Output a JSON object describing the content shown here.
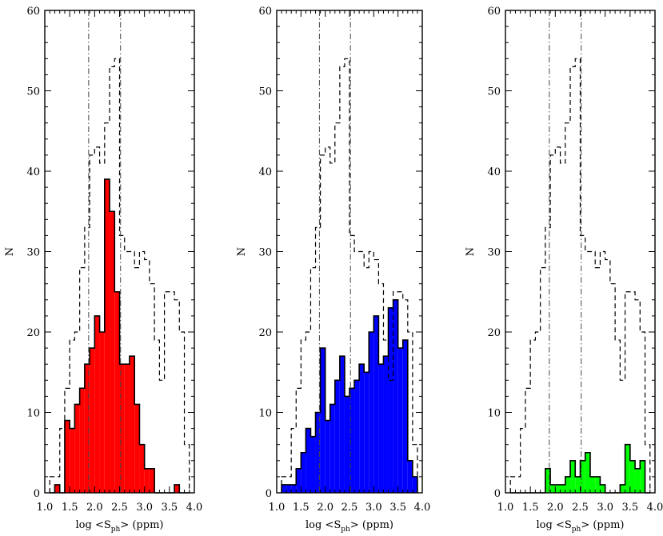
{
  "chart_data": [
    {
      "type": "histogram",
      "panel": "left",
      "xlabel": "log <S_ph> (ppm)",
      "ylabel": "N",
      "xlim": [
        1.0,
        4.0
      ],
      "ylim": [
        0,
        60
      ],
      "xticks": [
        "1.0",
        "1.5",
        "2.0",
        "2.5",
        "3.0",
        "3.5",
        "4.0"
      ],
      "yticks": [
        "0",
        "10",
        "20",
        "30",
        "40",
        "50",
        "60"
      ],
      "bin_width": 0.1,
      "vlines": [
        1.88,
        2.52
      ],
      "fill_color": "#ff0000",
      "series": [
        {
          "style": "filled",
          "x": [
            1.15,
            1.25,
            1.35,
            1.45,
            1.55,
            1.65,
            1.75,
            1.85,
            1.95,
            2.05,
            2.15,
            2.25,
            2.35,
            2.45,
            2.55,
            2.65,
            2.75,
            2.85,
            2.95,
            3.05,
            3.15,
            3.25,
            3.35,
            3.45,
            3.55,
            3.65,
            3.75,
            3.85
          ],
          "values": [
            0,
            1,
            0,
            9,
            8,
            11,
            13,
            16,
            18,
            22,
            20,
            39,
            35,
            25,
            16,
            16,
            17,
            11,
            6,
            3,
            3,
            0,
            0,
            0,
            0,
            1,
            0,
            0
          ]
        },
        {
          "style": "dashed",
          "x": [
            1.15,
            1.25,
            1.35,
            1.45,
            1.55,
            1.65,
            1.75,
            1.85,
            1.95,
            2.05,
            2.15,
            2.25,
            2.35,
            2.45,
            2.55,
            2.65,
            2.75,
            2.85,
            2.95,
            3.05,
            3.15,
            3.25,
            3.35,
            3.45,
            3.55,
            3.65,
            3.75,
            3.85
          ],
          "values": [
            2,
            2,
            8,
            13,
            19,
            20,
            28,
            33,
            42,
            43,
            41,
            46,
            53,
            54,
            32,
            30,
            30,
            28,
            30,
            29,
            26,
            19,
            14,
            25,
            25,
            24,
            20,
            6
          ]
        }
      ]
    },
    {
      "type": "histogram",
      "panel": "middle",
      "xlabel": "log <S_ph> (ppm)",
      "ylabel": "N",
      "xlim": [
        1.0,
        4.0
      ],
      "ylim": [
        0,
        60
      ],
      "xticks": [
        "1.0",
        "1.5",
        "2.0",
        "2.5",
        "3.0",
        "3.5",
        "4.0"
      ],
      "yticks": [
        "0",
        "10",
        "20",
        "30",
        "40",
        "50",
        "60"
      ],
      "bin_width": 0.1,
      "vlines": [
        1.88,
        2.52
      ],
      "fill_color": "#0000ff",
      "series": [
        {
          "style": "filled",
          "x": [
            1.15,
            1.25,
            1.35,
            1.45,
            1.55,
            1.65,
            1.75,
            1.85,
            1.95,
            2.05,
            2.15,
            2.25,
            2.35,
            2.45,
            2.55,
            2.65,
            2.75,
            2.85,
            2.95,
            3.05,
            3.15,
            3.25,
            3.35,
            3.45,
            3.55,
            3.65,
            3.75,
            3.85
          ],
          "values": [
            1,
            1,
            1,
            3,
            5,
            8,
            7,
            10,
            18,
            9,
            11,
            14,
            17,
            12,
            13,
            14,
            16,
            15,
            20,
            22,
            16,
            17,
            23,
            24,
            18,
            19,
            4,
            2
          ]
        },
        {
          "style": "dashed",
          "x": [
            1.15,
            1.25,
            1.35,
            1.45,
            1.55,
            1.65,
            1.75,
            1.85,
            1.95,
            2.05,
            2.15,
            2.25,
            2.35,
            2.45,
            2.55,
            2.65,
            2.75,
            2.85,
            2.95,
            3.05,
            3.15,
            3.25,
            3.35,
            3.45,
            3.55,
            3.65,
            3.75,
            3.85
          ],
          "values": [
            2,
            2,
            8,
            13,
            19,
            20,
            28,
            33,
            42,
            43,
            41,
            46,
            53,
            54,
            32,
            30,
            30,
            28,
            30,
            29,
            26,
            19,
            14,
            25,
            25,
            24,
            20,
            6
          ]
        }
      ]
    },
    {
      "type": "histogram",
      "panel": "right",
      "xlabel": "log <S_ph> (ppm)",
      "ylabel": "N",
      "xlim": [
        1.0,
        4.0
      ],
      "ylim": [
        0,
        60
      ],
      "xticks": [
        "1.0",
        "1.5",
        "2.0",
        "2.5",
        "3.0",
        "3.5",
        "4.0"
      ],
      "yticks": [
        "0",
        "10",
        "20",
        "30",
        "40",
        "50",
        "60"
      ],
      "bin_width": 0.1,
      "vlines": [
        1.88,
        2.52
      ],
      "fill_color": "#00ff00",
      "series": [
        {
          "style": "filled",
          "x": [
            1.15,
            1.25,
            1.35,
            1.45,
            1.55,
            1.65,
            1.75,
            1.85,
            1.95,
            2.05,
            2.15,
            2.25,
            2.35,
            2.45,
            2.55,
            2.65,
            2.75,
            2.85,
            2.95,
            3.05,
            3.15,
            3.25,
            3.35,
            3.45,
            3.55,
            3.65,
            3.75,
            3.85
          ],
          "values": [
            0,
            0,
            0,
            0,
            0,
            0,
            0,
            3,
            1,
            1,
            1,
            2,
            4,
            2,
            4,
            5,
            2,
            2,
            1,
            0,
            0,
            0,
            1,
            6,
            4,
            3,
            4,
            0
          ]
        },
        {
          "style": "dashed",
          "x": [
            1.15,
            1.25,
            1.35,
            1.45,
            1.55,
            1.65,
            1.75,
            1.85,
            1.95,
            2.05,
            2.15,
            2.25,
            2.35,
            2.45,
            2.55,
            2.65,
            2.75,
            2.85,
            2.95,
            3.05,
            3.15,
            3.25,
            3.35,
            3.45,
            3.55,
            3.65,
            3.75,
            3.85
          ],
          "values": [
            2,
            2,
            8,
            13,
            19,
            20,
            28,
            33,
            42,
            43,
            41,
            46,
            53,
            54,
            32,
            30,
            30,
            28,
            30,
            29,
            26,
            19,
            14,
            25,
            25,
            24,
            20,
            6
          ]
        }
      ]
    }
  ]
}
